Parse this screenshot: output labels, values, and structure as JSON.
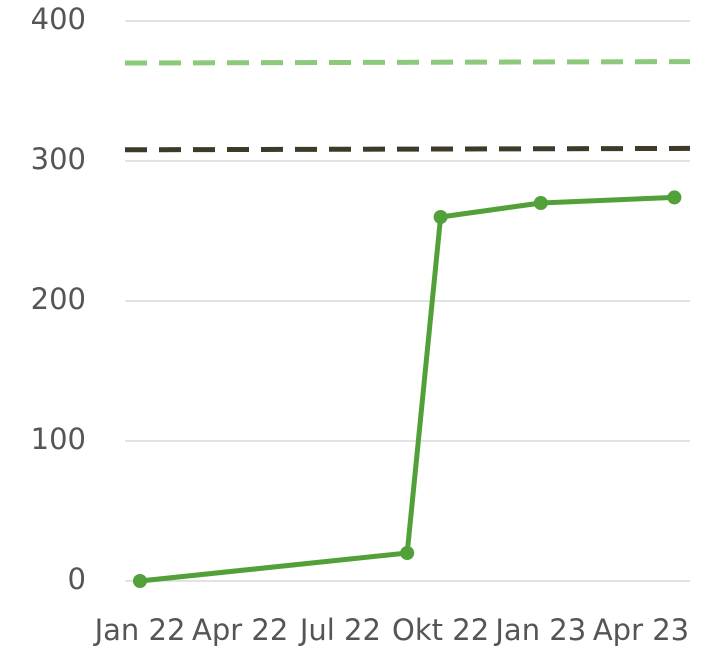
{
  "chart_data": {
    "type": "line",
    "x": [
      "2022-01",
      "2022-09",
      "2022-10",
      "2023-01",
      "2023-05"
    ],
    "series": [
      {
        "color": "#52a03a",
        "values": [
          0,
          20,
          260,
          270,
          274
        ]
      }
    ],
    "reference_lines": [
      {
        "color": "#8cc97a",
        "values": [
          370,
          371
        ],
        "dashed": true
      },
      {
        "color": "#3d3a2a",
        "values": [
          308,
          309
        ],
        "dashed": true
      }
    ],
    "xticks": [
      {
        "value": "2022-01",
        "label": "Jan 22"
      },
      {
        "value": "2022-04",
        "label": "Apr 22"
      },
      {
        "value": "2022-07",
        "label": "Jul 22"
      },
      {
        "value": "2022-10",
        "label": "Okt 22"
      },
      {
        "value": "2023-01",
        "label": "Jan 23"
      },
      {
        "value": "2023-04",
        "label": "Apr 23"
      }
    ],
    "ylim": [
      0,
      400
    ],
    "yticks": [
      0,
      100,
      200,
      300,
      400
    ],
    "grid": true
  }
}
